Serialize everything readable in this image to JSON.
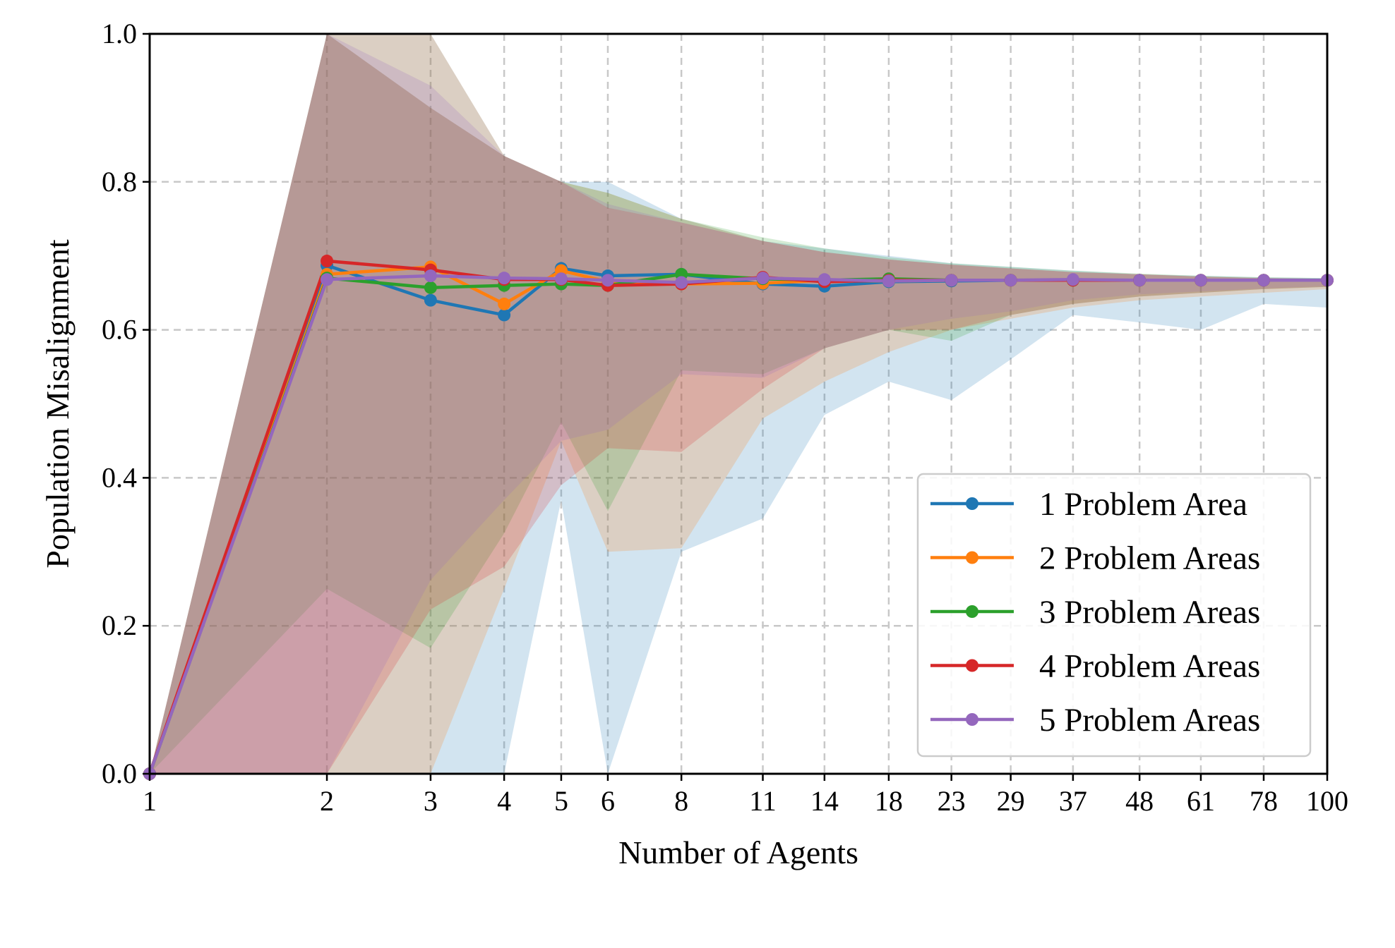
{
  "chart_data": {
    "type": "line",
    "title": "",
    "xlabel": "Number of Agents",
    "ylabel": "Population Misalignment",
    "xscale": "log",
    "x": [
      1,
      2,
      3,
      4,
      5,
      6,
      8,
      11,
      14,
      18,
      23,
      29,
      37,
      48,
      61,
      78,
      100
    ],
    "xtick_labels": [
      "1",
      "2",
      "3",
      "4",
      "5",
      "6",
      "8",
      "11",
      "14",
      "18",
      "23",
      "29",
      "37",
      "48",
      "61",
      "78",
      "100"
    ],
    "xlim": [
      1,
      100
    ],
    "ylim": [
      0,
      1
    ],
    "yticks": [
      0.0,
      0.2,
      0.4,
      0.6,
      0.8,
      1.0
    ],
    "ytick_labels": [
      "0.0",
      "0.2",
      "0.4",
      "0.6",
      "0.8",
      "1.0"
    ],
    "grid": true,
    "legend_position": "lower-right",
    "series": [
      {
        "name": "1 Problem Area",
        "color": "#1f77b4",
        "values": [
          0.0,
          0.687,
          0.64,
          0.62,
          0.683,
          0.673,
          0.675,
          0.662,
          0.659,
          0.665,
          0.666,
          0.667,
          0.667,
          0.667,
          0.667,
          0.667,
          0.667
        ],
        "band_low": [
          0.0,
          0.0,
          0.0,
          0.0,
          0.37,
          0.0,
          0.3,
          0.345,
          0.485,
          0.53,
          0.505,
          0.56,
          0.62,
          0.61,
          0.6,
          0.635,
          0.63
        ],
        "band_high": [
          0.0,
          1.0,
          1.0,
          0.835,
          0.8,
          0.8,
          0.75,
          0.72,
          0.71,
          0.7,
          0.69,
          0.685,
          0.68,
          0.675,
          0.673,
          0.671,
          0.67
        ]
      },
      {
        "name": "2 Problem Areas",
        "color": "#ff7f0e",
        "values": [
          0.0,
          0.675,
          0.685,
          0.635,
          0.68,
          0.665,
          0.662,
          0.663,
          0.667,
          0.666,
          0.667,
          0.667,
          0.667,
          0.667,
          0.667,
          0.667,
          0.667
        ],
        "band_low": [
          0.0,
          0.0,
          0.0,
          0.25,
          0.45,
          0.3,
          0.305,
          0.48,
          0.53,
          0.57,
          0.6,
          0.615,
          0.63,
          0.64,
          0.645,
          0.65,
          0.655
        ],
        "band_high": [
          0.0,
          1.0,
          1.0,
          0.835,
          0.8,
          0.785,
          0.75,
          0.72,
          0.705,
          0.695,
          0.688,
          0.683,
          0.678,
          0.675,
          0.672,
          0.67,
          0.669
        ]
      },
      {
        "name": "3 Problem Areas",
        "color": "#2ca02c",
        "values": [
          0.0,
          0.67,
          0.657,
          0.66,
          0.662,
          0.66,
          0.675,
          0.669,
          0.667,
          0.669,
          0.667,
          0.667,
          0.667,
          0.667,
          0.667,
          0.667,
          0.667
        ],
        "band_low": [
          0.0,
          0.25,
          0.17,
          0.325,
          0.475,
          0.355,
          0.545,
          0.54,
          0.575,
          0.6,
          0.585,
          0.62,
          0.635,
          0.645,
          0.65,
          0.655,
          0.658
        ],
        "band_high": [
          0.0,
          1.0,
          0.9,
          0.835,
          0.8,
          0.785,
          0.75,
          0.725,
          0.71,
          0.698,
          0.69,
          0.685,
          0.68,
          0.676,
          0.673,
          0.671,
          0.67
        ]
      },
      {
        "name": "4 Problem Areas",
        "color": "#d62728",
        "values": [
          0.0,
          0.693,
          0.681,
          0.668,
          0.668,
          0.66,
          0.662,
          0.671,
          0.665,
          0.667,
          0.667,
          0.667,
          0.667,
          0.667,
          0.667,
          0.667,
          0.667
        ],
        "band_low": [
          0.0,
          0.0,
          0.222,
          0.28,
          0.39,
          0.44,
          0.435,
          0.52,
          0.575,
          0.6,
          0.6,
          0.62,
          0.635,
          0.645,
          0.65,
          0.655,
          0.658
        ],
        "band_high": [
          0.0,
          1.0,
          0.9,
          0.835,
          0.8,
          0.765,
          0.745,
          0.72,
          0.705,
          0.695,
          0.688,
          0.683,
          0.678,
          0.675,
          0.672,
          0.67,
          0.669
        ]
      },
      {
        "name": "5 Problem Areas",
        "color": "#9467bd",
        "values": [
          0.0,
          0.668,
          0.673,
          0.67,
          0.669,
          0.667,
          0.664,
          0.67,
          0.668,
          0.666,
          0.667,
          0.667,
          0.668,
          0.667,
          0.667,
          0.667,
          0.667
        ],
        "band_low": [
          0.0,
          0.0,
          0.262,
          0.37,
          0.45,
          0.465,
          0.54,
          0.535,
          0.575,
          0.6,
          0.615,
          0.625,
          0.64,
          0.648,
          0.652,
          0.656,
          0.659
        ],
        "band_high": [
          0.0,
          1.0,
          0.93,
          0.835,
          0.8,
          0.77,
          0.745,
          0.72,
          0.705,
          0.695,
          0.688,
          0.683,
          0.678,
          0.675,
          0.672,
          0.67,
          0.669
        ]
      }
    ]
  }
}
